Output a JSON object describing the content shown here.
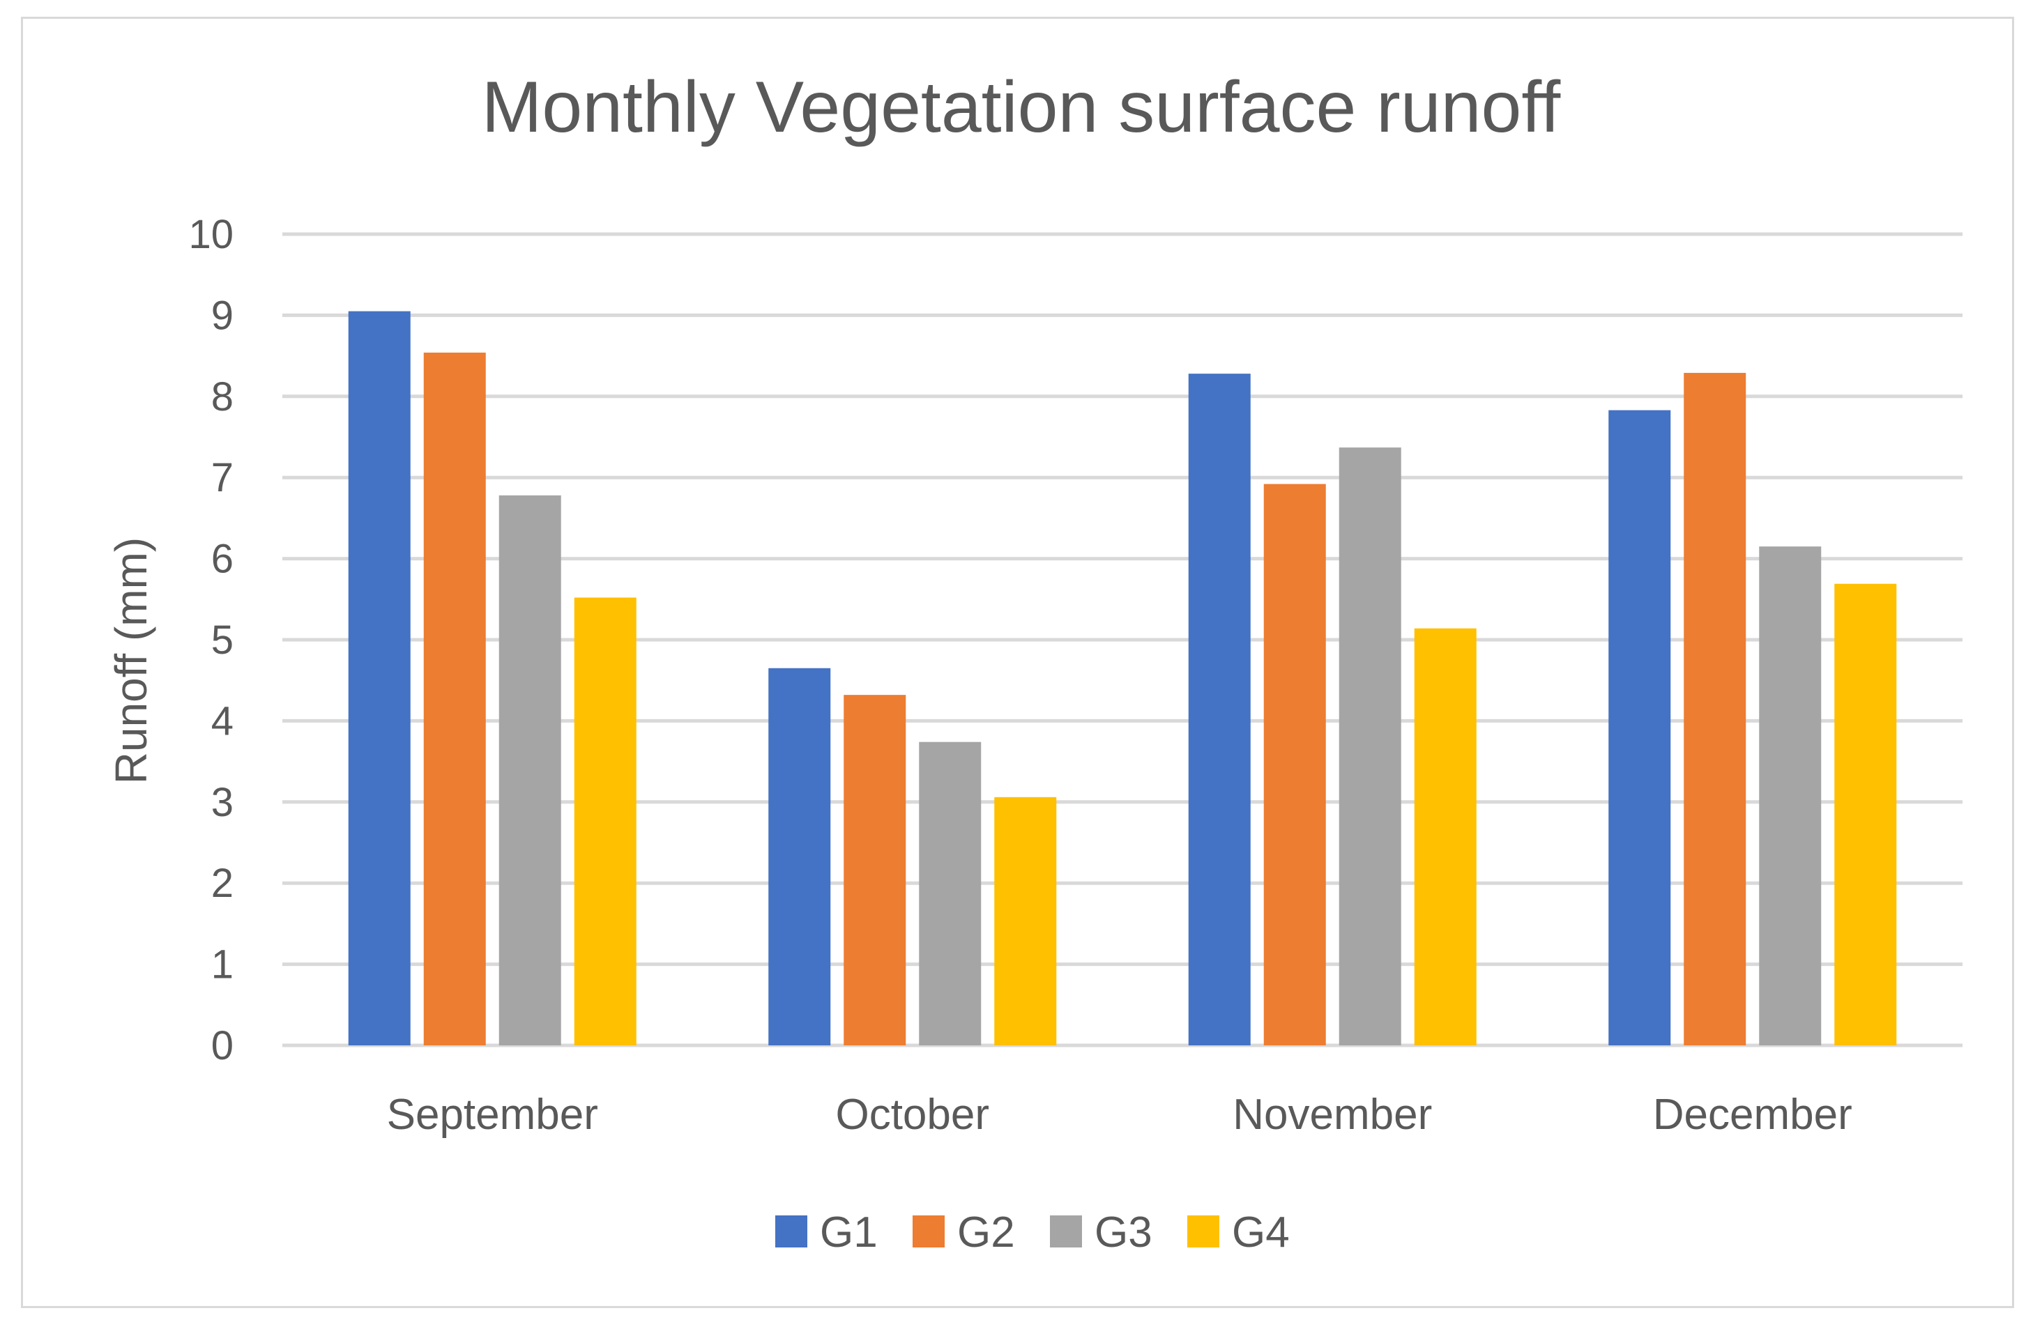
{
  "chart_data": {
    "type": "bar",
    "title": "Monthly Vegetation surface runoff",
    "xlabel": "",
    "ylabel": "Runoff (mm)",
    "ylim": [
      0,
      10
    ],
    "yticks": [
      "0",
      "1",
      "2",
      "3",
      "4",
      "5",
      "6",
      "7",
      "8",
      "9",
      "10"
    ],
    "grid": true,
    "legend_position": "bottom",
    "categories": [
      "September",
      "October",
      "November",
      "December"
    ],
    "series": [
      {
        "name": "G1",
        "color": "#4472c4",
        "values": [
          9.05,
          4.65,
          8.28,
          7.83
        ]
      },
      {
        "name": "G2",
        "color": "#ed7d31",
        "values": [
          8.54,
          4.32,
          6.92,
          8.29
        ]
      },
      {
        "name": "G3",
        "color": "#a5a5a5",
        "values": [
          6.78,
          3.74,
          7.37,
          6.15
        ]
      },
      {
        "name": "G4",
        "color": "#ffc000",
        "values": [
          5.52,
          3.06,
          5.14,
          5.69
        ]
      }
    ]
  }
}
